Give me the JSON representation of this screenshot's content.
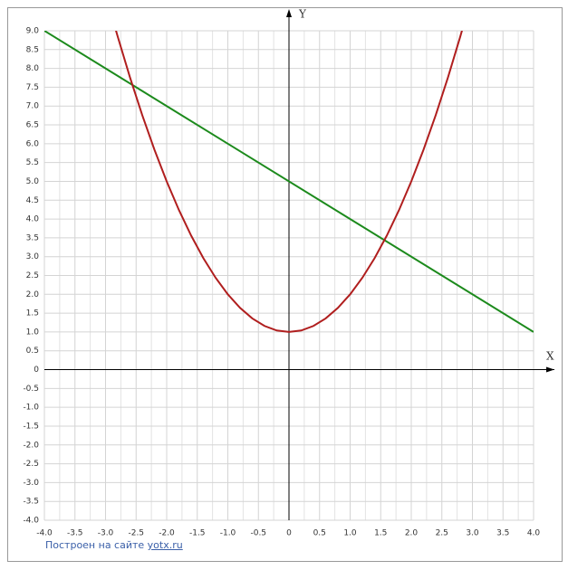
{
  "chart_data": {
    "type": "line",
    "xlabel": "X",
    "ylabel": "Y",
    "xlim": [
      -4,
      4
    ],
    "ylim": [
      -4,
      9
    ],
    "xticks": [
      {
        "value": -4,
        "label": "-4.0"
      },
      -3.5,
      {
        "value": -3,
        "label": "-3.0"
      },
      -2.5,
      {
        "value": -2,
        "label": "-2.0"
      },
      -1.5,
      {
        "value": -1,
        "label": "-1.0"
      },
      -0.5,
      0,
      0.5,
      {
        "value": 1,
        "label": "1.0"
      },
      1.5,
      {
        "value": 2,
        "label": "2.0"
      },
      2.5,
      {
        "value": 3,
        "label": "3.0"
      },
      3.5,
      {
        "value": 4,
        "label": "4.0"
      }
    ],
    "yticks": [
      {
        "value": 9,
        "label": "9.0"
      },
      8.5,
      {
        "value": 8,
        "label": "8.0"
      },
      7.5,
      {
        "value": 7,
        "label": "7.0"
      },
      6.5,
      {
        "value": 6,
        "label": "6.0"
      },
      5.5,
      {
        "value": 5,
        "label": "5.0"
      },
      4.5,
      {
        "value": 4,
        "label": "4.0"
      },
      3.5,
      {
        "value": 3,
        "label": "3.0"
      },
      2.5,
      {
        "value": 2,
        "label": "2.0"
      },
      1.5,
      {
        "value": 1,
        "label": "1.0"
      },
      0.5,
      0,
      -0.5,
      {
        "value": -1,
        "label": "-1.0"
      },
      -1.5,
      {
        "value": -2,
        "label": "-2.0"
      },
      -2.5,
      {
        "value": -3,
        "label": "-3.0"
      },
      -3.5,
      {
        "value": -4,
        "label": "-4.0"
      }
    ],
    "grid": true,
    "series": [
      {
        "color": "#1c8a1c",
        "x": [
          -4,
          4
        ],
        "values": [
          9,
          1
        ]
      },
      {
        "color": "#b01e1e",
        "x": [
          -2.83,
          -2.8,
          -2.6,
          -2.4,
          -2.2,
          -2.0,
          -1.8,
          -1.6,
          -1.4,
          -1.2,
          -1.0,
          -0.8,
          -0.6,
          -0.4,
          -0.2,
          0,
          0.2,
          0.4,
          0.6,
          0.8,
          1.0,
          1.2,
          1.4,
          1.6,
          1.8,
          2.0,
          2.2,
          2.4,
          2.6,
          2.8,
          2.83
        ],
        "values": [
          9.01,
          8.84,
          7.76,
          6.76,
          5.84,
          5,
          4.24,
          3.56,
          2.96,
          2.44,
          2,
          1.64,
          1.36,
          1.16,
          1.04,
          1,
          1.04,
          1.16,
          1.36,
          1.64,
          2,
          2.44,
          2.96,
          3.56,
          4.24,
          5,
          5.84,
          6.76,
          7.76,
          8.84,
          9.01
        ]
      }
    ]
  },
  "footer": {
    "text": "Построен на сайте",
    "link": "yotx.ru"
  }
}
